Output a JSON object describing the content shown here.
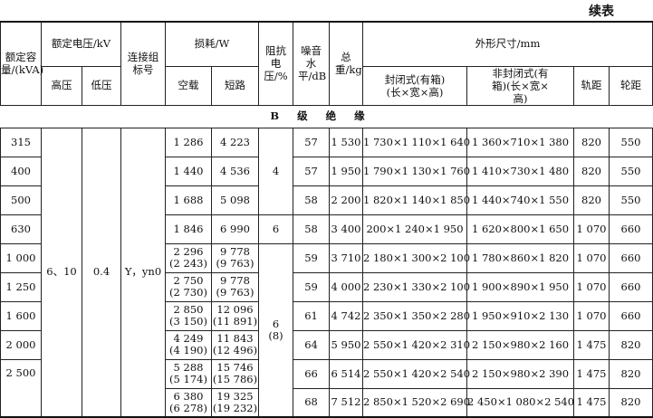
{
  "continued_label": "续表",
  "headers": {
    "capacity": "额定容量/(kVA)",
    "rated_voltage": "额定电压/kV",
    "hv": "高压",
    "lv": "低压",
    "connection": "连接组标号",
    "loss": "损耗/W",
    "no_load": "空载",
    "short_circuit": "短路",
    "impedance": "阻抗电压/%",
    "noise": "噪音水平/dB",
    "weight": "总重/kg",
    "dimensions": "外形尺寸/mm",
    "closed": "封闭式(有箱)(长×宽×高)",
    "open": "非封闭式(有箱)(长×宽×高)",
    "rail": "轨距",
    "wheel": "轮距"
  },
  "section": "B级绝缘",
  "shared": {
    "hv": "6、10",
    "lv": "0.4",
    "connection": "Y，yn0",
    "imp_a": "4",
    "imp_b": "6",
    "imp_c": "6\n(8)"
  },
  "rows": [
    {
      "cap": "315",
      "nl": "1 286",
      "sc": "4 223",
      "noise": "57",
      "wt": "1 530",
      "closed": "1 730×1 110×1 640",
      "open": "1 360×710×1 380",
      "rail": "820",
      "wheel": "550"
    },
    {
      "cap": "400",
      "nl": "1 440",
      "sc": "4 536",
      "noise": "57",
      "wt": "1 950",
      "closed": "1 790×1 130×1 760",
      "open": "1 410×730×1 480",
      "rail": "820",
      "wheel": "550"
    },
    {
      "cap": "500",
      "nl": "1 688",
      "sc": "5 098",
      "noise": "58",
      "wt": "2 200",
      "closed": "1 820×1 140×1 850",
      "open": "1 440×740×1 550",
      "rail": "820",
      "wheel": "550"
    },
    {
      "cap": "630",
      "nl": "1 846",
      "sc": "6 990",
      "noise": "58",
      "wt": "3 400",
      "closed": "200×1 240×1 950",
      "open": "1 620×800×1 650",
      "rail": "1 070",
      "wheel": "660"
    },
    {
      "cap": "1 000",
      "nl": "2 296\n(2 243)",
      "sc": "9 778\n(9 763)",
      "noise": "59",
      "wt": "3 710",
      "closed": "2 180×1 300×2 100",
      "open": "1 780×860×1 820",
      "rail": "1 070",
      "wheel": "660"
    },
    {
      "cap": "1 250",
      "nl": "2 750\n(2 730)",
      "sc": "9 778\n(9 763)",
      "noise": "59",
      "wt": "4 000",
      "closed": "2 230×1 330×2 100",
      "open": "1 900×890×1 950",
      "rail": "1 070",
      "wheel": "660"
    },
    {
      "cap": "1 600",
      "nl": "2 850\n(3 150)",
      "sc": "12 096\n(11 891)",
      "noise": "61",
      "wt": "4 742",
      "closed": "2 350×1 350×2 280",
      "open": "1 950×910×2 130",
      "rail": "1 070",
      "wheel": "660"
    },
    {
      "cap": "2 000",
      "nl": "4 249\n(4 190)",
      "sc": "11 843\n(12 496)",
      "noise": "64",
      "wt": "5 950",
      "closed": "2 550×1 420×2 310",
      "open": "2 150×980×2 160",
      "rail": "1 475",
      "wheel": "820"
    },
    {
      "cap": "2 500",
      "nl": "5 288\n(5 174)",
      "sc": "15 746\n(15 786)",
      "noise": "66",
      "wt": "6 514",
      "closed": "2 550×1 420×2 540",
      "open": "2 150×980×2 390",
      "rail": "1 475",
      "wheel": "820"
    },
    {
      "cap": "",
      "nl": "6 380\n(6 278)",
      "sc": "19 325\n(19 232)",
      "noise": "68",
      "wt": "7 512",
      "closed": "2 850×1 520×2 690",
      "open": "2 450×1 080×2 540",
      "rail": "1 475",
      "wheel": "820"
    }
  ]
}
